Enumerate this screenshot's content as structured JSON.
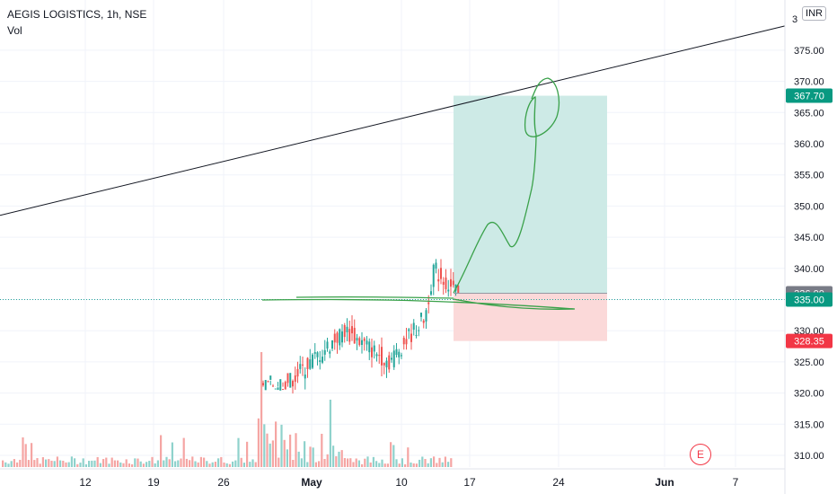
{
  "header": {
    "symbol_line": "AEGIS LOGISTICS, 1h, NSE",
    "indicator": "Vol",
    "currency": "INR"
  },
  "event_marker": "E",
  "colors": {
    "up": "#26a69a",
    "down": "#ef5350",
    "target_zone": "#cdeae6",
    "stop_zone": "#fbd9d9",
    "drawing": "#3aa14a",
    "trendline": "#131722"
  },
  "chart_data": {
    "type": "candlestick",
    "title": "AEGIS LOGISTICS, 1h, NSE",
    "y_axis": {
      "ticks": [
        310,
        315,
        320,
        325,
        330,
        335,
        340,
        345,
        350,
        355,
        360,
        365,
        370,
        375
      ],
      "tick_labels": [
        "310.00",
        "315.00",
        "320.00",
        "325.00",
        "330.00",
        "335.00",
        "340.00",
        "345.00",
        "350.00",
        "355.00",
        "360.00",
        "365.00",
        "370.00",
        "375.00"
      ],
      "top_label": "3",
      "ylim": [
        308.2,
        381.2
      ]
    },
    "x_axis": {
      "tick_labels": [
        "12",
        "19",
        "26",
        "May",
        "10",
        "17",
        "24",
        "Jun",
        "7"
      ]
    },
    "price_labels": [
      {
        "value": 367.7,
        "text": "367.70",
        "color": "#089981"
      },
      {
        "value": 336.0,
        "text": "336.00",
        "color": "#787b86"
      },
      {
        "value": 335.0,
        "text": "335.00",
        "color": "#089981"
      },
      {
        "value": 328.35,
        "text": "328.35",
        "color": "#f23645"
      }
    ],
    "current_price": 335.0,
    "position": {
      "entry": 336.0,
      "target": 367.7,
      "stop": 328.35
    },
    "trendline": {
      "from": 348.5,
      "to": 378.9
    },
    "candle_segments": [
      {
        "start": 321.0,
        "end": 322.0,
        "lo": 321.0,
        "hi": 322.0,
        "n": 12
      },
      {
        "start": 322.0,
        "end": 330.0,
        "lo": 319.5,
        "hi": 333.0,
        "n": 22
      },
      {
        "start": 330.0,
        "end": 325.0,
        "lo": 322.0,
        "hi": 332.5,
        "n": 18
      },
      {
        "start": 325.0,
        "end": 332.0,
        "lo": 322.0,
        "hi": 333.8,
        "n": 14
      },
      {
        "start": 331.0,
        "end": 340.0,
        "lo": 325.0,
        "hi": 344.0,
        "n": 4
      },
      {
        "start": 340.0,
        "end": 335.5,
        "lo": 334.5,
        "hi": 341.5,
        "n": 10
      }
    ]
  }
}
